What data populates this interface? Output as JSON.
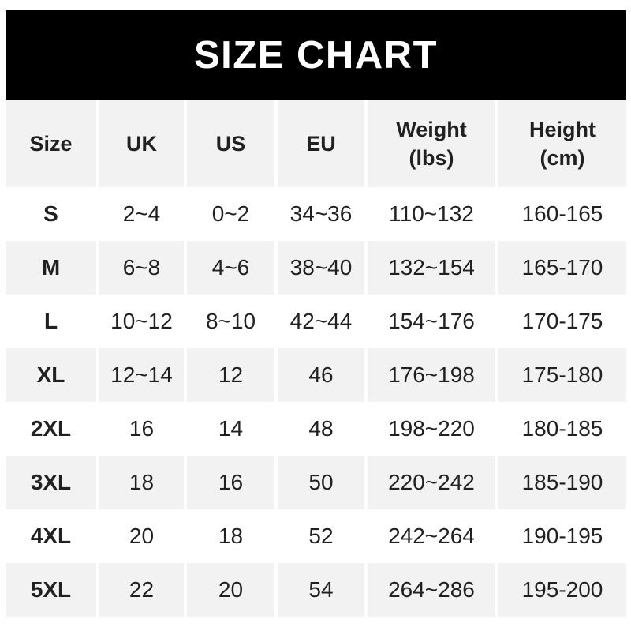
{
  "banner": {
    "title": "SIZE CHART"
  },
  "colors": {
    "banner_bg": "#000000",
    "banner_text": "#ffffff",
    "stripe_bg": "#f2f2f2",
    "text": "#212121",
    "page_bg": "#ffffff"
  },
  "chart_data": {
    "type": "table",
    "title": "SIZE CHART",
    "layout": "striped rows, alternating white and light gray, centered text, no visible grid lines except white column gaps",
    "columns": [
      {
        "line1": "Size",
        "line2": ""
      },
      {
        "line1": "UK",
        "line2": ""
      },
      {
        "line1": "US",
        "line2": ""
      },
      {
        "line1": "EU",
        "line2": ""
      },
      {
        "line1": "Weight",
        "line2": "(lbs)"
      },
      {
        "line1": "Height",
        "line2": "(cm)"
      }
    ],
    "rows": [
      {
        "size": "S",
        "uk": "2~4",
        "us": "0~2",
        "eu": "34~36",
        "weight_lbs": "110~132",
        "height_cm": "160-165"
      },
      {
        "size": "M",
        "uk": "6~8",
        "us": "4~6",
        "eu": "38~40",
        "weight_lbs": "132~154",
        "height_cm": "165-170"
      },
      {
        "size": "L",
        "uk": "10~12",
        "us": "8~10",
        "eu": "42~44",
        "weight_lbs": "154~176",
        "height_cm": "170-175"
      },
      {
        "size": "XL",
        "uk": "12~14",
        "us": "12",
        "eu": "46",
        "weight_lbs": "176~198",
        "height_cm": "175-180"
      },
      {
        "size": "2XL",
        "uk": "16",
        "us": "14",
        "eu": "48",
        "weight_lbs": "198~220",
        "height_cm": "180-185"
      },
      {
        "size": "3XL",
        "uk": "18",
        "us": "16",
        "eu": "50",
        "weight_lbs": "220~242",
        "height_cm": "185-190"
      },
      {
        "size": "4XL",
        "uk": "20",
        "us": "18",
        "eu": "52",
        "weight_lbs": "242~264",
        "height_cm": "190-195"
      },
      {
        "size": "5XL",
        "uk": "22",
        "us": "20",
        "eu": "54",
        "weight_lbs": "264~286",
        "height_cm": "195-200"
      }
    ]
  }
}
